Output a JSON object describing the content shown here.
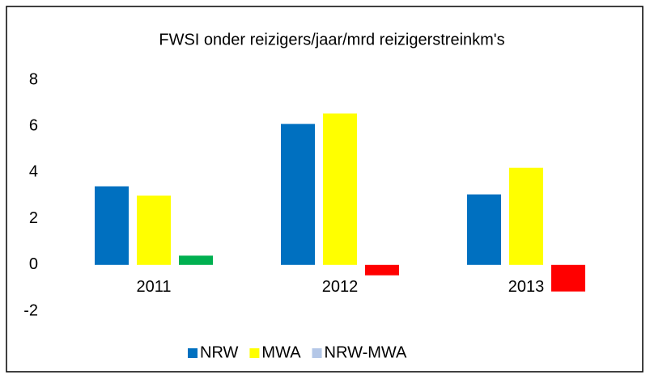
{
  "chart_data": {
    "type": "bar",
    "title": "FWSI onder reizigers/jaar/mrd reizigerstreinkm's",
    "categories": [
      "2011",
      "2012",
      "2013"
    ],
    "series": [
      {
        "name": "NRW",
        "color": "#0070c0",
        "values": [
          3.4,
          6.1,
          3.05
        ]
      },
      {
        "name": "MWA",
        "color": "#ffff00",
        "values": [
          3.0,
          6.55,
          4.2
        ]
      },
      {
        "name": "NRW-MWA",
        "color": "#b4c7e7",
        "point_colors": [
          "#00b050",
          "#ff0000",
          "#ff0000"
        ],
        "values": [
          0.4,
          -0.45,
          -1.15
        ]
      }
    ],
    "ylim": [
      -2,
      8
    ],
    "yticks": [
      -2,
      0,
      2,
      4,
      6,
      8
    ],
    "grid": false,
    "legend": "bottom"
  }
}
